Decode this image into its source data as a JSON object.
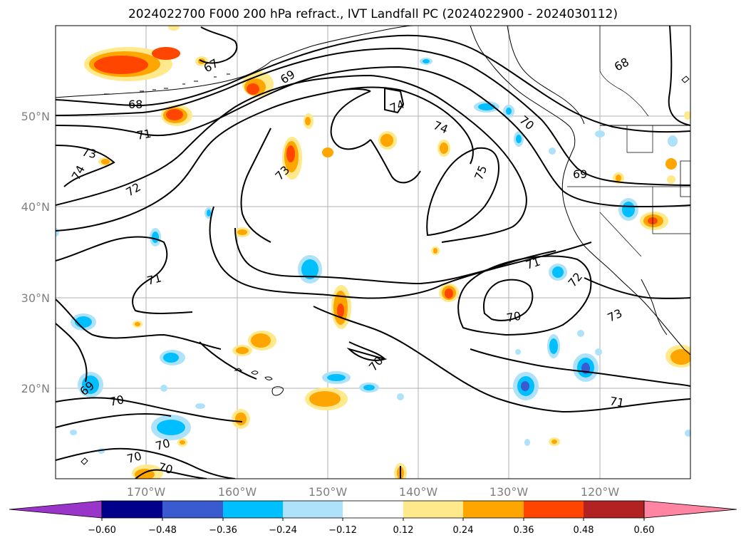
{
  "title": "2024022700 F000 200 hPa refract., IVT Landfall PC (2024022900 - 2024030112)",
  "map": {
    "lat_labels": [
      "50°N",
      "40°N",
      "30°N",
      "20°N"
    ],
    "lon_labels": [
      "170°W",
      "160°W",
      "150°W",
      "140°W",
      "130°W",
      "120°W"
    ],
    "contour_labels": [
      "67",
      "69",
      "68",
      "71",
      "73",
      "74",
      "72",
      "73",
      "74",
      "74",
      "75",
      "70",
      "69",
      "68",
      "71",
      "71",
      "72",
      "70",
      "73",
      "70",
      "69",
      "70",
      "71",
      "70",
      "70",
      "70"
    ]
  },
  "colorbar": {
    "colors": [
      "#9a35c9",
      "#00008b",
      "#3a5bd0",
      "#00bfff",
      "#aee2fa",
      "#ffffff",
      "#ffe98a",
      "#ffa500",
      "#ff4500",
      "#b22222",
      "#ff85a2"
    ],
    "ticks": [
      "−0.60",
      "−0.48",
      "−0.36",
      "−0.24",
      "−0.12",
      "0.12",
      "0.24",
      "0.36",
      "0.48",
      "0.60"
    ]
  }
}
